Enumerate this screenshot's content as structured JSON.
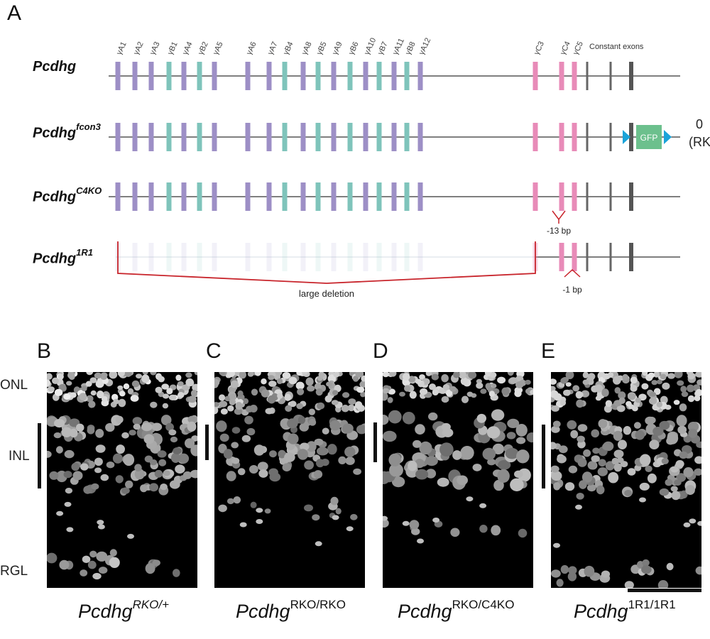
{
  "panel_a": {
    "letter": "A",
    "header_labels": {
      "exon_names": [
        "γA1",
        "γA2",
        "γA3",
        "γB1",
        "γA4",
        "γB2",
        "γA5",
        "γA6",
        "γA7",
        "γB4",
        "γA8",
        "γB5",
        "γA9",
        "γB6",
        "γA10",
        "γB7",
        "γA11",
        "γB8",
        "γA12",
        "γC3",
        "γC4",
        "γC5"
      ],
      "constant": "Constant exons"
    },
    "rows": [
      {
        "name": "Pcdhg",
        "sup": ""
      },
      {
        "name": "Pcdhg",
        "sup": "fcon3"
      },
      {
        "name": "Pcdhg",
        "sup": "C4KO"
      },
      {
        "name": "Pcdhg",
        "sup": "1R1"
      }
    ],
    "gfp_label": "GFP",
    "side_text": [
      "0",
      "(RK"
    ],
    "annotations": {
      "c4ko_mutation": "-13 bp",
      "r1_mutation": "-1 bp",
      "deletion": "large deletion"
    },
    "colors": {
      "gammaA": "#9d8fc6",
      "gammaB": "#7fc4bb",
      "gammaC": "#e88bb8",
      "constant": "#666666",
      "gfp": "#6cc08d",
      "loxp": "#1aa3d9",
      "deletion": "#c8242b"
    }
  },
  "micrographs": {
    "layers": {
      "onl": "ONL",
      "inl": "INL",
      "rgl": "RGL"
    },
    "panels": [
      {
        "letter": "B",
        "base": "Pcdhg",
        "sup": "RKO/+",
        "sup_italic": true
      },
      {
        "letter": "C",
        "base": "Pcdhg",
        "sup": "RKO/RKO",
        "sup_italic": false
      },
      {
        "letter": "D",
        "base": "Pcdhg",
        "sup": "RKO/C4KO",
        "sup_italic": false
      },
      {
        "letter": "E",
        "base": "Pcdhg",
        "sup": "1R1/1R1",
        "sup_italic": false
      }
    ]
  }
}
